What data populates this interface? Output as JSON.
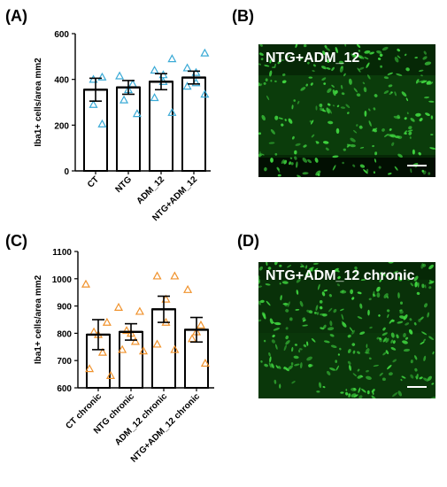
{
  "panel_labels": {
    "a": "(A)",
    "b": "(B)",
    "c": "(C)",
    "d": "(D)"
  },
  "image_b": {
    "title": "NTG+ADM_12"
  },
  "image_d": {
    "title": "NTG+ADM_12 chronic"
  },
  "colors": {
    "triangles_a": "#3aaad6",
    "triangles_c": "#f0922c",
    "micro_bg": "#062806",
    "micro_cell": "#3fd43f"
  },
  "chart_data": [
    {
      "type": "bar",
      "title": "",
      "xlabel": "",
      "ylabel": "Iba1+ cells/area mm2",
      "ylim": [
        0,
        600
      ],
      "yticks": [
        0,
        200,
        400,
        600
      ],
      "categories": [
        "CT",
        "NTG",
        "ADM_12",
        "NTG+ADM_12"
      ],
      "values": [
        355,
        365,
        390,
        408
      ],
      "sem": [
        50,
        30,
        35,
        28
      ],
      "points": [
        [
          205,
          290,
          400,
          410
        ],
        [
          250,
          310,
          355,
          380,
          415
        ],
        [
          255,
          320,
          390,
          420,
          440,
          490
        ],
        [
          335,
          370,
          385,
          430,
          450,
          515
        ]
      ]
    },
    {
      "type": "bar",
      "title": "",
      "xlabel": "",
      "ylabel": "Iba1+ cells/area mm2",
      "ylim": [
        600,
        1100
      ],
      "yticks": [
        600,
        700,
        800,
        900,
        1000,
        1100
      ],
      "categories": [
        "CT chronic",
        "NTG chronic",
        "ADM_12 chronic",
        "NTG+ADM_12 chronic"
      ],
      "values": [
        795,
        805,
        888,
        813
      ],
      "sem": [
        55,
        30,
        48,
        45
      ],
      "points": [
        [
          645,
          670,
          730,
          795,
          805,
          840,
          980
        ],
        [
          735,
          740,
          770,
          800,
          810,
          880,
          895
        ],
        [
          740,
          760,
          840,
          925,
          1010,
          1010
        ],
        [
          690,
          780,
          805,
          830,
          960
        ]
      ]
    }
  ]
}
